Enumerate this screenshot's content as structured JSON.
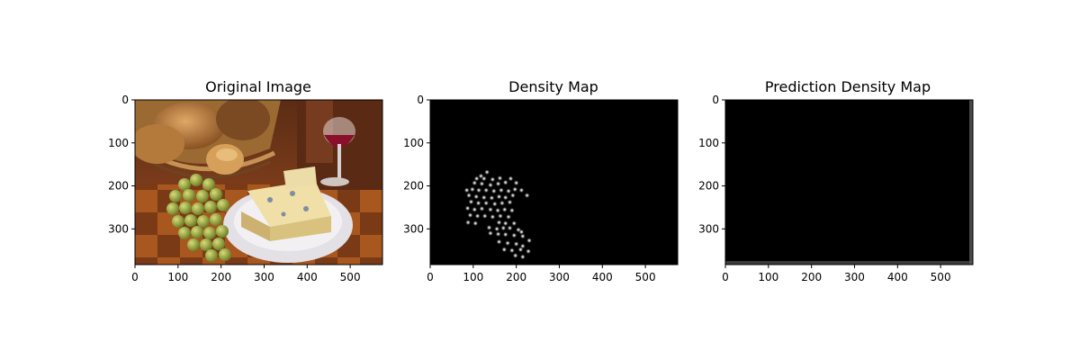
{
  "chart_data": [
    {
      "type": "image",
      "title": "Original Image",
      "xlabel": "",
      "ylabel": "",
      "xlim": [
        0,
        575
      ],
      "ylim": [
        383,
        0
      ],
      "xticks": [
        "0",
        "100",
        "200",
        "300",
        "400",
        "500"
      ],
      "yticks": [
        "0",
        "100",
        "200",
        "300"
      ],
      "content": "still life photo"
    },
    {
      "type": "heatmap",
      "title": "Density Map",
      "xlabel": "",
      "ylabel": "",
      "xlim": [
        0,
        575
      ],
      "ylim": [
        383,
        0
      ],
      "xticks": [
        "0",
        "100",
        "200",
        "300",
        "400",
        "500"
      ],
      "yticks": [
        "0",
        "100",
        "200",
        "300"
      ],
      "points": [
        [
          132,
          168
        ],
        [
          118,
          177
        ],
        [
          108,
          183
        ],
        [
          125,
          183
        ],
        [
          145,
          185
        ],
        [
          162,
          182
        ],
        [
          187,
          183
        ],
        [
          103,
          193
        ],
        [
          120,
          195
        ],
        [
          140,
          198
        ],
        [
          158,
          195
        ],
        [
          175,
          192
        ],
        [
          200,
          193
        ],
        [
          85,
          210
        ],
        [
          98,
          208
        ],
        [
          113,
          210
        ],
        [
          130,
          210
        ],
        [
          148,
          212
        ],
        [
          165,
          210
        ],
        [
          182,
          212
        ],
        [
          197,
          208
        ],
        [
          212,
          210
        ],
        [
          225,
          222
        ],
        [
          90,
          222
        ],
        [
          107,
          225
        ],
        [
          125,
          227
        ],
        [
          143,
          228
        ],
        [
          160,
          225
        ],
        [
          175,
          227
        ],
        [
          192,
          222
        ],
        [
          95,
          237
        ],
        [
          112,
          240
        ],
        [
          130,
          240
        ],
        [
          150,
          242
        ],
        [
          167,
          240
        ],
        [
          185,
          238
        ],
        [
          87,
          252
        ],
        [
          103,
          255
        ],
        [
          120,
          253
        ],
        [
          140,
          255
        ],
        [
          157,
          257
        ],
        [
          173,
          255
        ],
        [
          190,
          257
        ],
        [
          93,
          268
        ],
        [
          110,
          270
        ],
        [
          127,
          270
        ],
        [
          145,
          272
        ],
        [
          163,
          270
        ],
        [
          182,
          272
        ],
        [
          88,
          285
        ],
        [
          105,
          287
        ],
        [
          160,
          285
        ],
        [
          175,
          287
        ],
        [
          195,
          287
        ],
        [
          137,
          297
        ],
        [
          155,
          300
        ],
        [
          170,
          298
        ],
        [
          185,
          298
        ],
        [
          205,
          302
        ],
        [
          212,
          307
        ],
        [
          140,
          310
        ],
        [
          158,
          312
        ],
        [
          175,
          313
        ],
        [
          195,
          315
        ],
        [
          215,
          317
        ],
        [
          230,
          327
        ],
        [
          160,
          330
        ],
        [
          180,
          333
        ],
        [
          200,
          335
        ],
        [
          215,
          340
        ],
        [
          172,
          348
        ],
        [
          190,
          350
        ],
        [
          210,
          348
        ],
        [
          228,
          352
        ],
        [
          198,
          362
        ],
        [
          215,
          365
        ]
      ]
    },
    {
      "type": "heatmap",
      "title": "Prediction Density Map",
      "xlabel": "",
      "ylabel": "",
      "xlim": [
        0,
        575
      ],
      "ylim": [
        383,
        0
      ],
      "xticks": [
        "0",
        "100",
        "200",
        "300",
        "400",
        "500"
      ],
      "yticks": [
        "0",
        "100",
        "200",
        "300"
      ],
      "edge_glow": "bottom and right edges"
    }
  ]
}
